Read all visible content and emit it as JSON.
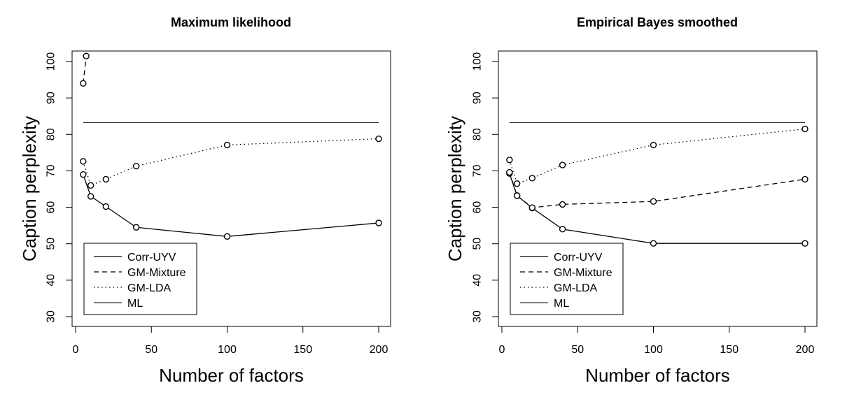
{
  "chart_data": [
    {
      "type": "line",
      "title": "Maximum likelihood",
      "xlabel": "Number of factors",
      "ylabel": "Caption perplexity",
      "xlim": [
        0,
        200
      ],
      "ylim": [
        30,
        100
      ],
      "xticks": [
        "0",
        "50",
        "100",
        "150",
        "200"
      ],
      "yticks": [
        "30",
        "40",
        "50",
        "60",
        "70",
        "80",
        "90",
        "100"
      ],
      "legend_position": "bottom-left",
      "series": [
        {
          "name": "Corr-UYV",
          "style": "solid",
          "markers": true,
          "x": [
            5,
            10,
            20,
            40,
            100,
            200
          ],
          "y": [
            69,
            63,
            60.2,
            54.5,
            52,
            55.7
          ]
        },
        {
          "name": "GM-Mixture",
          "style": "dashed",
          "markers": true,
          "x": [
            5,
            7
          ],
          "y": [
            94,
            101.5
          ]
        },
        {
          "name": "GM-LDA",
          "style": "dotted",
          "markers": true,
          "x": [
            5,
            10,
            20,
            40,
            100,
            200
          ],
          "y": [
            72.6,
            66,
            67.7,
            71.3,
            77.1,
            78.8
          ]
        },
        {
          "name": "ML",
          "style": "thin",
          "markers": false,
          "x": [
            5,
            200
          ],
          "y": [
            83.2,
            83.2
          ]
        }
      ]
    },
    {
      "type": "line",
      "title": "Empirical Bayes smoothed",
      "xlabel": "Number of factors",
      "ylabel": "Caption perplexity",
      "xlim": [
        0,
        200
      ],
      "ylim": [
        30,
        100
      ],
      "xticks": [
        "0",
        "50",
        "100",
        "150",
        "200"
      ],
      "yticks": [
        "30",
        "40",
        "50",
        "60",
        "70",
        "80",
        "90",
        "100"
      ],
      "legend_position": "bottom-left",
      "series": [
        {
          "name": "Corr-UYV",
          "style": "solid",
          "markers": true,
          "x": [
            5,
            10,
            20,
            40,
            100,
            200
          ],
          "y": [
            69.3,
            63.2,
            59.8,
            54,
            50.1,
            50.1
          ]
        },
        {
          "name": "GM-Mixture",
          "style": "dashed",
          "markers": true,
          "x": [
            5,
            10,
            20,
            40,
            100,
            200
          ],
          "y": [
            69.6,
            63.2,
            59.9,
            60.8,
            61.6,
            67.7
          ]
        },
        {
          "name": "GM-LDA",
          "style": "dotted",
          "markers": true,
          "x": [
            5,
            10,
            20,
            40,
            100,
            200
          ],
          "y": [
            73,
            66.5,
            68,
            71.6,
            77.1,
            81.5
          ]
        },
        {
          "name": "ML",
          "style": "thin",
          "markers": false,
          "x": [
            5,
            200
          ],
          "y": [
            83.2,
            83.2
          ]
        }
      ]
    }
  ]
}
